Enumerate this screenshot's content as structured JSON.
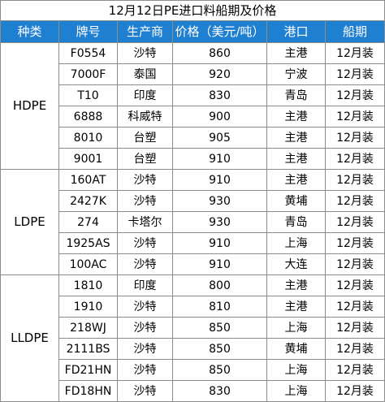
{
  "title": "12月12日PE进口料船期及价格",
  "headers": [
    "种类",
    "牌号",
    "生产商",
    "价格（美元/吨）",
    "港口",
    "船期"
  ],
  "groups": [
    {
      "category": "HDPE",
      "rows": [
        {
          "grade": "F0554",
          "producer": "沙特",
          "price": "860",
          "port": "主港",
          "shipment": "12月装"
        },
        {
          "grade": "7000F",
          "producer": "泰国",
          "price": "920",
          "port": "宁波",
          "shipment": "12月装"
        },
        {
          "grade": "T10",
          "producer": "印度",
          "price": "830",
          "port": "青岛",
          "shipment": "12月装"
        },
        {
          "grade": "6888",
          "producer": "科威特",
          "price": "900",
          "port": "主港",
          "shipment": "12月装"
        },
        {
          "grade": "8010",
          "producer": "台塑",
          "price": "905",
          "port": "主港",
          "shipment": "12月装"
        },
        {
          "grade": "9001",
          "producer": "台塑",
          "price": "910",
          "port": "主港",
          "shipment": "12月装"
        }
      ]
    },
    {
      "category": "LDPE",
      "rows": [
        {
          "grade": "160AT",
          "producer": "沙特",
          "price": "910",
          "port": "主港",
          "shipment": "12月装"
        },
        {
          "grade": "2427K",
          "producer": "沙特",
          "price": "930",
          "port": "黄埔",
          "shipment": "12月装"
        },
        {
          "grade": "274",
          "producer": "卡塔尔",
          "price": "930",
          "port": "青岛",
          "shipment": "12月装"
        },
        {
          "grade": "1925AS",
          "producer": "沙特",
          "price": "910",
          "port": "上海",
          "shipment": "12月装"
        },
        {
          "grade": "100AC",
          "producer": "沙特",
          "price": "910",
          "port": "大连",
          "shipment": "12月装"
        }
      ]
    },
    {
      "category": "LLDPE",
      "rows": [
        {
          "grade": "1810",
          "producer": "印度",
          "price": "800",
          "port": "主港",
          "shipment": "12月装"
        },
        {
          "grade": "1910",
          "producer": "沙特",
          "price": "810",
          "port": "主港",
          "shipment": "12月装"
        },
        {
          "grade": "218WJ",
          "producer": "沙特",
          "price": "850",
          "port": "上海",
          "shipment": "12月装"
        },
        {
          "grade": "2111BS",
          "producer": "沙特",
          "price": "850",
          "port": "黄埔",
          "shipment": "12月装"
        },
        {
          "grade": "FD21HN",
          "producer": "沙特",
          "price": "850",
          "port": "上海",
          "shipment": "12月装"
        },
        {
          "grade": "FD18HN",
          "producer": "沙特",
          "price": "830",
          "port": "上海",
          "shipment": "12月装"
        }
      ]
    }
  ],
  "colors": {
    "header_bg": "#1f7fd0",
    "header_text": "#ffffff",
    "border": "#8c8c8c"
  }
}
